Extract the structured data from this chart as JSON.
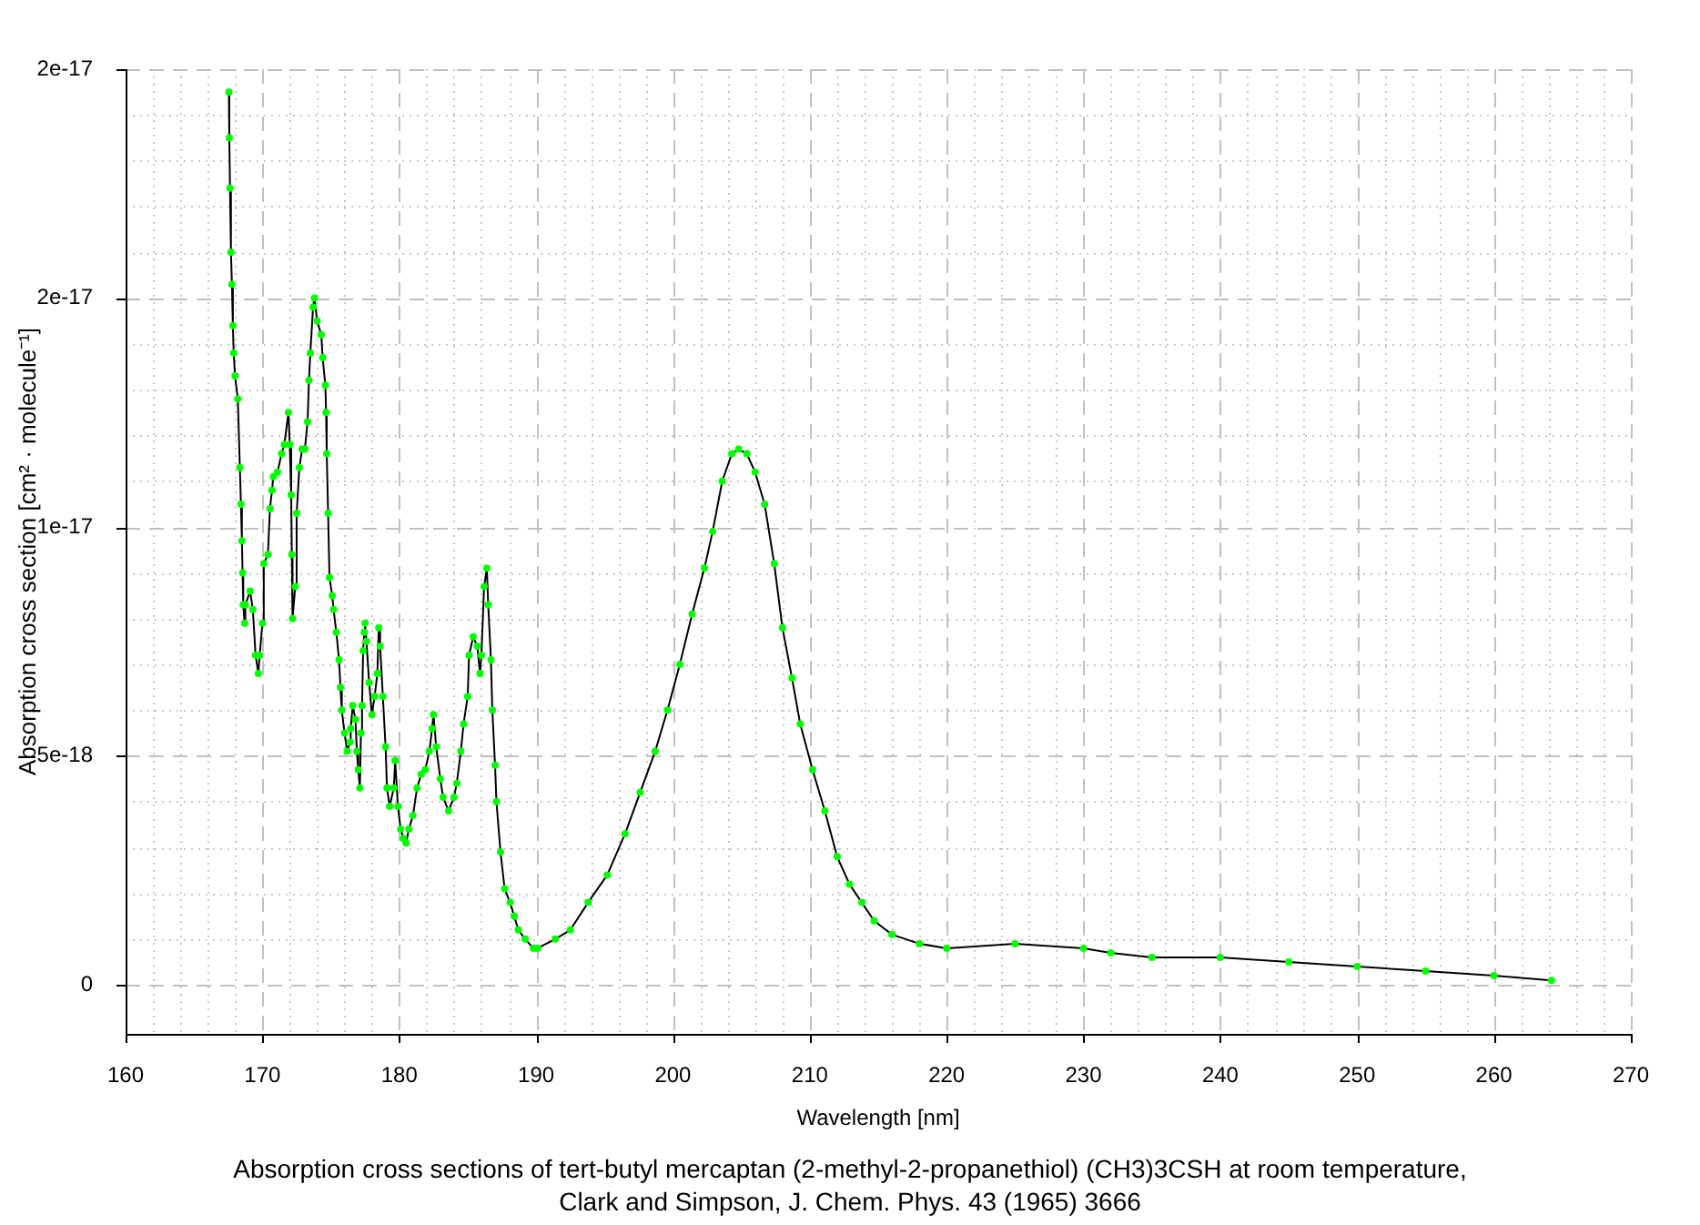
{
  "chart_data": {
    "type": "line",
    "title": "Absorption cross sections of tert-butyl mercaptan (2-methyl-2-propanethiol) (CH3)3CSH at room temperature,",
    "annotations": [
      "Clark and Simpson, J. Chem. Phys. 43 (1965) 3666"
    ],
    "xlabel": "Wavelength [nm]",
    "ylabel": "Absorption cross section [cm² · molecule⁻¹]",
    "xlim": [
      160,
      270
    ],
    "ylim": [
      -1.07e-18,
      2e-17
    ],
    "xticks": [
      160,
      {
        "value": 162,
        "label": null
      },
      {
        "value": 164,
        "label": null
      },
      {
        "value": 166,
        "label": null
      },
      {
        "value": 168,
        "label": null
      },
      170,
      {
        "value": 172,
        "label": null
      },
      {
        "value": 174,
        "label": null
      },
      {
        "value": 176,
        "label": null
      },
      {
        "value": 178,
        "label": null
      },
      180,
      {
        "value": 182,
        "label": null
      },
      {
        "value": 184,
        "label": null
      },
      {
        "value": 186,
        "label": null
      },
      {
        "value": 188,
        "label": null
      },
      190,
      {
        "value": 192,
        "label": null
      },
      {
        "value": 194,
        "label": null
      },
      {
        "value": 196,
        "label": null
      },
      {
        "value": 198,
        "label": null
      },
      200,
      {
        "value": 202,
        "label": null
      },
      {
        "value": 204,
        "label": null
      },
      {
        "value": 206,
        "label": null
      },
      {
        "value": 208,
        "label": null
      },
      210,
      {
        "value": 212,
        "label": null
      },
      {
        "value": 214,
        "label": null
      },
      {
        "value": 216,
        "label": null
      },
      {
        "value": 218,
        "label": null
      },
      220,
      {
        "value": 222,
        "label": null
      },
      {
        "value": 224,
        "label": null
      },
      {
        "value": 226,
        "label": null
      },
      {
        "value": 228,
        "label": null
      },
      230,
      {
        "value": 232,
        "label": null
      },
      {
        "value": 234,
        "label": null
      },
      {
        "value": 236,
        "label": null
      },
      {
        "value": 238,
        "label": null
      },
      240,
      {
        "value": 242,
        "label": null
      },
      {
        "value": 244,
        "label": null
      },
      {
        "value": 246,
        "label": null
      },
      {
        "value": 248,
        "label": null
      },
      250,
      {
        "value": 252,
        "label": null
      },
      {
        "value": 254,
        "label": null
      },
      {
        "value": 256,
        "label": null
      },
      {
        "value": 258,
        "label": null
      },
      260,
      {
        "value": 262,
        "label": null
      },
      {
        "value": 264,
        "label": null
      },
      {
        "value": 266,
        "label": null
      },
      {
        "value": 268,
        "label": null
      },
      270
    ],
    "yticks": [
      0,
      {
        "value": 1e-18,
        "label": null
      },
      {
        "value": 2e-18,
        "label": null
      },
      {
        "value": 3e-18,
        "label": null
      },
      {
        "value": 4e-18,
        "label": null
      },
      5e-18,
      {
        "value": 6e-18,
        "label": null
      },
      {
        "value": 7e-18,
        "label": null
      },
      {
        "value": 8e-18,
        "label": null
      },
      {
        "value": 9e-18,
        "label": null
      },
      1e-17,
      {
        "value": 1.1e-17,
        "label": null
      },
      {
        "value": 1.2e-17,
        "label": null
      },
      {
        "value": 1.3e-17,
        "label": null
      },
      {
        "value": 1.4e-17,
        "label": null
      },
      {
        "value": 1.5e-17,
        "label": "2e-17"
      },
      {
        "value": 1.6e-17,
        "label": null
      },
      {
        "value": 1.7e-17,
        "label": null
      },
      {
        "value": 1.8e-17,
        "label": null
      },
      {
        "value": 1.9e-17,
        "label": null
      },
      2e-17
    ],
    "grid": true,
    "legend": false,
    "marker": "circle",
    "line_style": "solid",
    "series": [
      {
        "color": "#000000",
        "x": [
          167.55,
          167.58,
          167.63,
          167.7,
          167.77,
          167.84,
          167.9,
          168.0,
          168.2,
          168.35,
          168.43,
          168.5,
          168.55,
          168.6,
          168.7,
          168.75,
          169.1,
          169.3,
          169.5,
          169.7,
          169.8,
          170.0,
          170.1,
          170.4,
          170.55,
          170.7,
          170.8,
          171.1,
          171.4,
          171.6,
          171.9,
          172.0,
          172.1,
          172.15,
          172.2,
          172.4,
          172.5,
          172.7,
          172.9,
          173.1,
          173.3,
          173.4,
          173.5,
          173.7,
          173.8,
          174.0,
          174.3,
          174.4,
          174.6,
          174.65,
          174.7,
          174.8,
          174.9,
          175.1,
          175.2,
          175.4,
          175.6,
          175.7,
          175.8,
          176.0,
          176.2,
          176.4,
          176.45,
          176.6,
          176.8,
          176.9,
          177.0,
          177.12,
          177.2,
          177.28,
          177.36,
          177.44,
          177.5,
          177.6,
          177.8,
          178.0,
          178.2,
          178.4,
          178.5,
          178.6,
          178.8,
          179.0,
          179.1,
          179.3,
          179.6,
          179.7,
          179.9,
          180.1,
          180.3,
          180.5,
          180.7,
          181.0,
          181.3,
          181.6,
          181.9,
          182.2,
          182.4,
          182.5,
          182.7,
          183.0,
          183.2,
          183.6,
          184.0,
          184.2,
          184.5,
          184.7,
          185.0,
          185.1,
          185.4,
          185.7,
          185.9,
          186.0,
          186.2,
          186.4,
          186.5,
          186.7,
          186.8,
          187.0,
          187.1,
          187.4,
          187.7,
          188.1,
          188.4,
          188.7,
          189.2,
          189.8,
          190.1,
          191.4,
          192.5,
          193.8,
          195.2,
          196.5,
          197.6,
          198.7,
          199.6,
          200.5,
          201.4,
          202.3,
          202.9,
          203.6,
          204.3,
          204.8,
          205.4,
          206.0,
          206.7,
          207.4,
          208.0,
          208.7,
          209.3,
          210.2,
          211.1,
          212.0,
          212.9,
          213.8,
          214.7,
          216,
          218,
          220,
          225,
          230,
          232,
          235,
          240,
          245,
          250,
          255,
          260,
          264.2
        ],
        "values": [
          1.95e-17,
          1.85e-17,
          1.74e-17,
          1.6e-17,
          1.53e-17,
          1.44e-17,
          1.38e-17,
          1.33e-17,
          1.28e-17,
          1.13e-17,
          1.05e-17,
          9.7e-18,
          9e-18,
          8.3e-18,
          7.9e-18,
          8.3e-18,
          8.6e-18,
          8.2e-18,
          7.2e-18,
          6.8e-18,
          7.2e-18,
          7.9e-18,
          9.2e-18,
          9.4e-18,
          1.04e-17,
          1.08e-17,
          1.11e-17,
          1.12e-17,
          1.16e-17,
          1.18e-17,
          1.25e-17,
          1.18e-17,
          1.07e-17,
          9.4e-18,
          8e-18,
          8.7e-18,
          1.03e-17,
          1.13e-17,
          1.17e-17,
          1.17e-17,
          1.23e-17,
          1.32e-17,
          1.38e-17,
          1.48e-17,
          1.5e-17,
          1.45e-17,
          1.42e-17,
          1.37e-17,
          1.31e-17,
          1.25e-17,
          1.16e-17,
          1.03e-17,
          8.9e-18,
          8.5e-18,
          8.2e-18,
          7.7e-18,
          7.1e-18,
          6.5e-18,
          6e-18,
          5.5e-18,
          5.1e-18,
          5.3e-18,
          5.6e-18,
          6.1e-18,
          5.8e-18,
          5.1e-18,
          4.7e-18,
          4.3e-18,
          5.5e-18,
          6.1e-18,
          7.3e-18,
          7.7e-18,
          7.9e-18,
          7.5e-18,
          6.6e-18,
          5.9e-18,
          6.3e-18,
          6.8e-18,
          7.8e-18,
          7.4e-18,
          6.3e-18,
          5.2e-18,
          4.3e-18,
          3.9e-18,
          4.3e-18,
          4.9e-18,
          3.9e-18,
          3.4e-18,
          3.2e-18,
          3.1e-18,
          3.4e-18,
          3.7e-18,
          4.3e-18,
          4.6e-18,
          4.7e-18,
          5.1e-18,
          5.6e-18,
          5.9e-18,
          5.2e-18,
          4.5e-18,
          4.1e-18,
          3.8e-18,
          4.1e-18,
          4.4e-18,
          5.1e-18,
          5.7e-18,
          6.3e-18,
          7.2e-18,
          7.6e-18,
          7.4e-18,
          6.8e-18,
          7.2e-18,
          8.7e-18,
          9.1e-18,
          8.3e-18,
          7.1e-18,
          6e-18,
          4.8e-18,
          4e-18,
          2.9e-18,
          2.1e-18,
          1.8e-18,
          1.5e-18,
          1.2e-18,
          1e-18,
          8e-19,
          8e-19,
          1e-18,
          1.2e-18,
          1.8e-18,
          2.4e-18,
          3.3e-18,
          4.2e-18,
          5.1e-18,
          6e-18,
          7e-18,
          8.1e-18,
          9.1e-18,
          9.9e-18,
          1.1e-17,
          1.16e-17,
          1.17e-17,
          1.16e-17,
          1.12e-17,
          1.05e-17,
          9.2e-18,
          7.8e-18,
          6.7e-18,
          5.7e-18,
          4.7e-18,
          3.8e-18,
          2.8e-18,
          2.2e-18,
          1.8e-18,
          1.4e-18,
          1.1e-18,
          9e-19,
          8e-19,
          9e-19,
          8e-19,
          7e-19,
          6e-19,
          6e-19,
          5e-19,
          4e-19,
          3e-19,
          2e-19,
          1e-19
        ]
      }
    ]
  }
}
